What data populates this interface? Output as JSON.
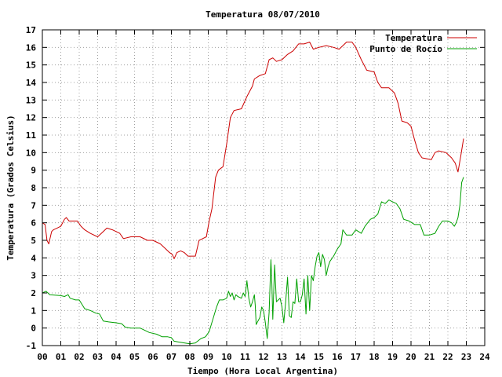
{
  "chart_data": {
    "type": "line",
    "title": "Temperatura 08/07/2010",
    "xlabel": "Tiempo (Hora Local Argentina)",
    "ylabel": "Temperatura (Grados Celsius)",
    "xlim": [
      0,
      24
    ],
    "ylim": [
      -1,
      17
    ],
    "x_ticks": [
      "00",
      "01",
      "02",
      "03",
      "04",
      "05",
      "06",
      "07",
      "08",
      "09",
      "10",
      "11",
      "12",
      "13",
      "14",
      "15",
      "16",
      "17",
      "18",
      "19",
      "20",
      "21",
      "22",
      "23",
      "24"
    ],
    "y_ticks": [
      "-1",
      "0",
      "1",
      "2",
      "3",
      "4",
      "5",
      "6",
      "7",
      "8",
      "9",
      "10",
      "11",
      "12",
      "13",
      "14",
      "15",
      "16",
      "17"
    ],
    "grid": true,
    "legend_position": "top-right",
    "series": [
      {
        "name": "Temperatura",
        "color": "#cc0000",
        "points": [
          [
            0.0,
            6.0
          ],
          [
            0.15,
            5.9
          ],
          [
            0.25,
            5.0
          ],
          [
            0.35,
            4.8
          ],
          [
            0.5,
            5.5
          ],
          [
            0.6,
            5.6
          ],
          [
            0.8,
            5.7
          ],
          [
            1.0,
            5.8
          ],
          [
            1.2,
            6.2
          ],
          [
            1.3,
            6.3
          ],
          [
            1.45,
            6.1
          ],
          [
            1.9,
            6.1
          ],
          [
            2.1,
            5.8
          ],
          [
            2.3,
            5.6
          ],
          [
            2.6,
            5.4
          ],
          [
            3.0,
            5.2
          ],
          [
            3.2,
            5.4
          ],
          [
            3.5,
            5.7
          ],
          [
            3.8,
            5.6
          ],
          [
            4.2,
            5.4
          ],
          [
            4.4,
            5.1
          ],
          [
            4.8,
            5.2
          ],
          [
            5.3,
            5.2
          ],
          [
            5.7,
            5.0
          ],
          [
            6.0,
            5.0
          ],
          [
            6.4,
            4.8
          ],
          [
            6.6,
            4.6
          ],
          [
            6.9,
            4.3
          ],
          [
            7.05,
            4.2
          ],
          [
            7.15,
            3.95
          ],
          [
            7.3,
            4.3
          ],
          [
            7.5,
            4.4
          ],
          [
            7.7,
            4.3
          ],
          [
            7.9,
            4.1
          ],
          [
            8.3,
            4.1
          ],
          [
            8.5,
            5.0
          ],
          [
            8.7,
            5.1
          ],
          [
            8.9,
            5.2
          ],
          [
            9.05,
            6.1
          ],
          [
            9.2,
            6.8
          ],
          [
            9.4,
            8.6
          ],
          [
            9.55,
            9.0
          ],
          [
            9.8,
            9.2
          ],
          [
            10.0,
            10.5
          ],
          [
            10.2,
            12.0
          ],
          [
            10.4,
            12.4
          ],
          [
            10.8,
            12.5
          ],
          [
            11.1,
            13.2
          ],
          [
            11.4,
            13.8
          ],
          [
            11.5,
            14.2
          ],
          [
            11.8,
            14.4
          ],
          [
            12.1,
            14.5
          ],
          [
            12.3,
            15.3
          ],
          [
            12.5,
            15.4
          ],
          [
            12.7,
            15.2
          ],
          [
            13.0,
            15.3
          ],
          [
            13.3,
            15.6
          ],
          [
            13.6,
            15.8
          ],
          [
            13.9,
            16.2
          ],
          [
            14.2,
            16.2
          ],
          [
            14.5,
            16.3
          ],
          [
            14.7,
            15.9
          ],
          [
            15.0,
            16.0
          ],
          [
            15.4,
            16.1
          ],
          [
            15.8,
            16.0
          ],
          [
            16.1,
            15.9
          ],
          [
            16.3,
            16.1
          ],
          [
            16.5,
            16.3
          ],
          [
            16.8,
            16.3
          ],
          [
            17.0,
            16.0
          ],
          [
            17.3,
            15.3
          ],
          [
            17.6,
            14.7
          ],
          [
            18.0,
            14.6
          ],
          [
            18.2,
            14.0
          ],
          [
            18.4,
            13.7
          ],
          [
            18.8,
            13.7
          ],
          [
            19.1,
            13.4
          ],
          [
            19.3,
            12.8
          ],
          [
            19.5,
            11.8
          ],
          [
            19.8,
            11.7
          ],
          [
            20.0,
            11.5
          ],
          [
            20.2,
            10.7
          ],
          [
            20.4,
            10.0
          ],
          [
            20.6,
            9.7
          ],
          [
            21.1,
            9.6
          ],
          [
            21.3,
            10.0
          ],
          [
            21.5,
            10.1
          ],
          [
            21.9,
            10.0
          ],
          [
            22.2,
            9.7
          ],
          [
            22.4,
            9.4
          ],
          [
            22.55,
            8.9
          ],
          [
            22.7,
            9.8
          ],
          [
            22.85,
            10.8
          ]
        ]
      },
      {
        "name": "Punto de Rocío",
        "color": "#00a000",
        "points": [
          [
            0.0,
            2.0
          ],
          [
            0.2,
            2.1
          ],
          [
            0.4,
            1.9
          ],
          [
            1.0,
            1.85
          ],
          [
            1.2,
            1.8
          ],
          [
            1.4,
            1.9
          ],
          [
            1.5,
            1.7
          ],
          [
            1.8,
            1.6
          ],
          [
            2.0,
            1.6
          ],
          [
            2.3,
            1.1
          ],
          [
            2.6,
            1.0
          ],
          [
            2.9,
            0.85
          ],
          [
            3.1,
            0.8
          ],
          [
            3.3,
            0.4
          ],
          [
            3.6,
            0.35
          ],
          [
            4.0,
            0.3
          ],
          [
            4.3,
            0.25
          ],
          [
            4.5,
            0.05
          ],
          [
            4.8,
            0.0
          ],
          [
            5.3,
            0.0
          ],
          [
            5.5,
            -0.1
          ],
          [
            5.8,
            -0.25
          ],
          [
            6.2,
            -0.35
          ],
          [
            6.5,
            -0.5
          ],
          [
            6.8,
            -0.5
          ],
          [
            7.0,
            -0.55
          ],
          [
            7.15,
            -0.75
          ],
          [
            7.4,
            -0.8
          ],
          [
            7.7,
            -0.85
          ],
          [
            8.0,
            -0.9
          ],
          [
            8.3,
            -0.85
          ],
          [
            8.6,
            -0.6
          ],
          [
            8.85,
            -0.5
          ],
          [
            9.05,
            -0.2
          ],
          [
            9.25,
            0.5
          ],
          [
            9.45,
            1.2
          ],
          [
            9.6,
            1.6
          ],
          [
            9.8,
            1.6
          ],
          [
            10.0,
            1.7
          ],
          [
            10.1,
            2.1
          ],
          [
            10.2,
            1.8
          ],
          [
            10.3,
            2.0
          ],
          [
            10.4,
            1.6
          ],
          [
            10.5,
            1.9
          ],
          [
            10.6,
            1.8
          ],
          [
            10.8,
            1.7
          ],
          [
            10.9,
            2.0
          ],
          [
            11.0,
            1.8
          ],
          [
            11.1,
            2.7
          ],
          [
            11.2,
            1.7
          ],
          [
            11.3,
            1.2
          ],
          [
            11.4,
            1.5
          ],
          [
            11.5,
            1.9
          ],
          [
            11.55,
            1.3
          ],
          [
            11.6,
            0.2
          ],
          [
            11.7,
            0.4
          ],
          [
            11.8,
            0.6
          ],
          [
            11.9,
            1.2
          ],
          [
            12.0,
            1.0
          ],
          [
            12.1,
            0.3
          ],
          [
            12.2,
            -0.6
          ],
          [
            12.3,
            0.9
          ],
          [
            12.4,
            3.9
          ],
          [
            12.45,
            2.5
          ],
          [
            12.5,
            0.5
          ],
          [
            12.6,
            3.6
          ],
          [
            12.7,
            1.5
          ],
          [
            12.8,
            1.6
          ],
          [
            12.9,
            1.7
          ],
          [
            13.0,
            1.2
          ],
          [
            13.1,
            0.3
          ],
          [
            13.2,
            1.5
          ],
          [
            13.3,
            2.9
          ],
          [
            13.4,
            0.7
          ],
          [
            13.5,
            0.6
          ],
          [
            13.6,
            1.5
          ],
          [
            13.7,
            1.4
          ],
          [
            13.8,
            2.8
          ],
          [
            13.9,
            1.5
          ],
          [
            14.0,
            1.5
          ],
          [
            14.1,
            1.9
          ],
          [
            14.2,
            2.8
          ],
          [
            14.3,
            0.8
          ],
          [
            14.4,
            3.0
          ],
          [
            14.5,
            1.0
          ],
          [
            14.6,
            3.0
          ],
          [
            14.7,
            2.7
          ],
          [
            14.8,
            3.5
          ],
          [
            14.9,
            4.1
          ],
          [
            15.0,
            4.3
          ],
          [
            15.1,
            3.5
          ],
          [
            15.2,
            4.2
          ],
          [
            15.3,
            3.9
          ],
          [
            15.4,
            3.0
          ],
          [
            15.5,
            3.5
          ],
          [
            15.6,
            3.8
          ],
          [
            15.8,
            4.1
          ],
          [
            16.0,
            4.5
          ],
          [
            16.2,
            4.8
          ],
          [
            16.3,
            5.6
          ],
          [
            16.5,
            5.3
          ],
          [
            16.8,
            5.3
          ],
          [
            17.0,
            5.6
          ],
          [
            17.3,
            5.4
          ],
          [
            17.5,
            5.8
          ],
          [
            17.8,
            6.2
          ],
          [
            18.0,
            6.3
          ],
          [
            18.2,
            6.5
          ],
          [
            18.4,
            7.2
          ],
          [
            18.6,
            7.1
          ],
          [
            18.8,
            7.3
          ],
          [
            19.0,
            7.2
          ],
          [
            19.2,
            7.1
          ],
          [
            19.4,
            6.8
          ],
          [
            19.6,
            6.2
          ],
          [
            19.9,
            6.1
          ],
          [
            20.2,
            5.9
          ],
          [
            20.5,
            5.9
          ],
          [
            20.7,
            5.3
          ],
          [
            21.0,
            5.3
          ],
          [
            21.3,
            5.4
          ],
          [
            21.5,
            5.8
          ],
          [
            21.7,
            6.1
          ],
          [
            22.0,
            6.1
          ],
          [
            22.2,
            6.0
          ],
          [
            22.35,
            5.8
          ],
          [
            22.45,
            6.0
          ],
          [
            22.55,
            6.3
          ],
          [
            22.65,
            7.0
          ],
          [
            22.75,
            8.3
          ],
          [
            22.85,
            8.6
          ]
        ]
      }
    ]
  }
}
